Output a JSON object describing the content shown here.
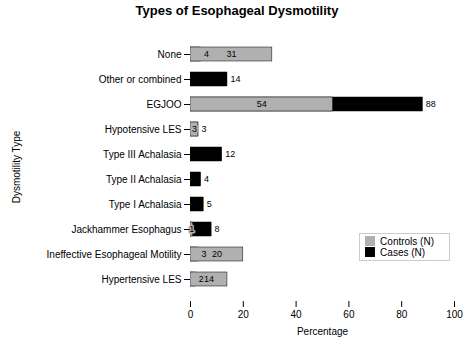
{
  "chart_data": {
    "type": "bar",
    "orientation": "horizontal",
    "stacked": false,
    "title": "Types of Esophageal Dysmotility",
    "xlabel": "Percentage",
    "ylabel": "Dysmotility Type",
    "categories": [
      "None",
      "Other or combined",
      "EGJOO",
      "Hypotensive LES",
      "Type III Achalasia",
      "Type II Achalasia",
      "Type I Achalasia",
      "Jackhammer Esophagus",
      "Ineffective Esophageal Motility",
      "Hypertensive LES"
    ],
    "series": [
      {
        "name": "Controls (N)",
        "color": "#b0b0b0",
        "values": [
          31,
          0,
          54,
          3,
          0,
          0,
          0,
          1,
          20,
          14
        ]
      },
      {
        "name": "Cases (N)",
        "color": "#000000",
        "values": [
          4,
          14,
          88,
          3,
          12,
          4,
          5,
          8,
          3,
          2
        ]
      }
    ],
    "xlim": [
      0,
      100
    ],
    "xticks": [
      0,
      20,
      40,
      60,
      80,
      100
    ],
    "data_labels": true,
    "legend": "lower right",
    "grid": false
  }
}
